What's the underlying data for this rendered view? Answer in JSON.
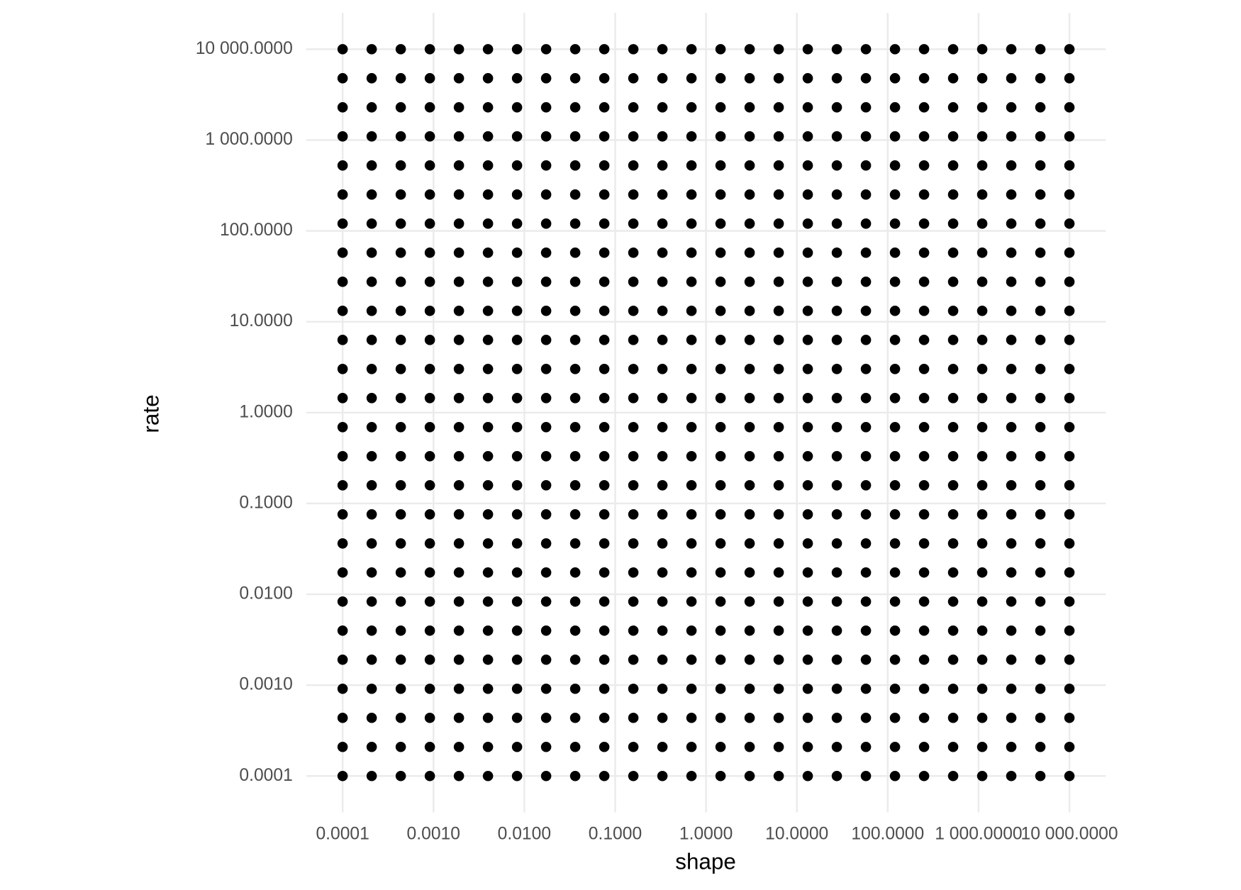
{
  "chart_data": {
    "type": "scatter",
    "x_label": "shape",
    "y_label": "rate",
    "x": [
      0.0001,
      0.00020893,
      0.00043652,
      0.00091201,
      0.0019055,
      0.0039811,
      0.0083176,
      0.017378,
      0.036308,
      0.075858,
      0.15849,
      0.33113,
      0.69183,
      1.4454,
      3.02,
      6.3096,
      13.183,
      27.542,
      57.544,
      120.23,
      251.19,
      524.81,
      1096.5,
      2290.9,
      4786.3,
      10000
    ],
    "y": [
      0.0001,
      0.00020893,
      0.00043652,
      0.00091201,
      0.0019055,
      0.0039811,
      0.0083176,
      0.017378,
      0.036308,
      0.075858,
      0.15849,
      0.33113,
      0.69183,
      1.4454,
      3.02,
      6.3096,
      13.183,
      27.542,
      57.544,
      120.23,
      251.19,
      524.81,
      1096.5,
      2290.9,
      4786.3,
      10000
    ],
    "color": "#000000",
    "xlog": true,
    "ylog": true,
    "grid": true,
    "xlim": [
      3.98e-05,
      25119
    ],
    "ylim": [
      3.98e-05,
      25119
    ],
    "xticks": [
      0.0001,
      {
        "value": 0.001,
        "label": "0.0010"
      },
      {
        "value": 0.01,
        "label": "0.0100"
      },
      {
        "value": 0.1,
        "label": "0.1000"
      },
      {
        "value": 1,
        "label": "1.0000"
      },
      {
        "value": 10,
        "label": "10.0000"
      },
      {
        "value": 100,
        "label": "100.0000"
      },
      {
        "value": 1000,
        "label": "1 000.0000"
      },
      {
        "value": 10000,
        "label": "10 000.0000"
      }
    ],
    "yticks": [
      0.0001,
      {
        "value": 0.001,
        "label": "0.0010"
      },
      {
        "value": 0.01,
        "label": "0.0100"
      },
      {
        "value": 0.1,
        "label": "0.1000"
      },
      {
        "value": 1,
        "label": "1.0000"
      },
      {
        "value": 10,
        "label": "10.0000"
      },
      {
        "value": 100,
        "label": "100.0000"
      },
      {
        "value": 1000,
        "label": "1 000.0000"
      },
      {
        "value": 10000,
        "label": "10 000.0000"
      }
    ]
  }
}
